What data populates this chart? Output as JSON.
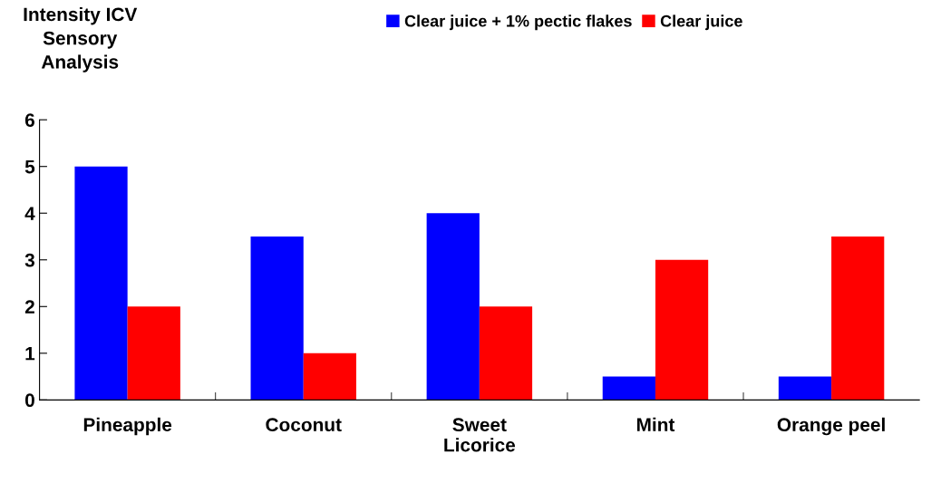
{
  "chart_data": {
    "type": "bar",
    "ylabel": "Intensity ICV\nSensory\nAnalysis",
    "categories": [
      "Pineapple",
      "Coconut",
      "Sweet\nLicorice",
      "Mint",
      "Orange peel"
    ],
    "series": [
      {
        "name": "Clear juice + 1% pectic flakes",
        "color": "#0000ff",
        "values": [
          5,
          3.5,
          4,
          0.5,
          0.5
        ]
      },
      {
        "name": "Clear juice",
        "color": "#ff0000",
        "values": [
          2,
          1,
          2,
          3,
          3.5
        ]
      }
    ],
    "ylim": [
      0,
      6
    ],
    "yticks": [
      0,
      1,
      2,
      3,
      4,
      5,
      6
    ],
    "grid": false,
    "legend": "top"
  }
}
